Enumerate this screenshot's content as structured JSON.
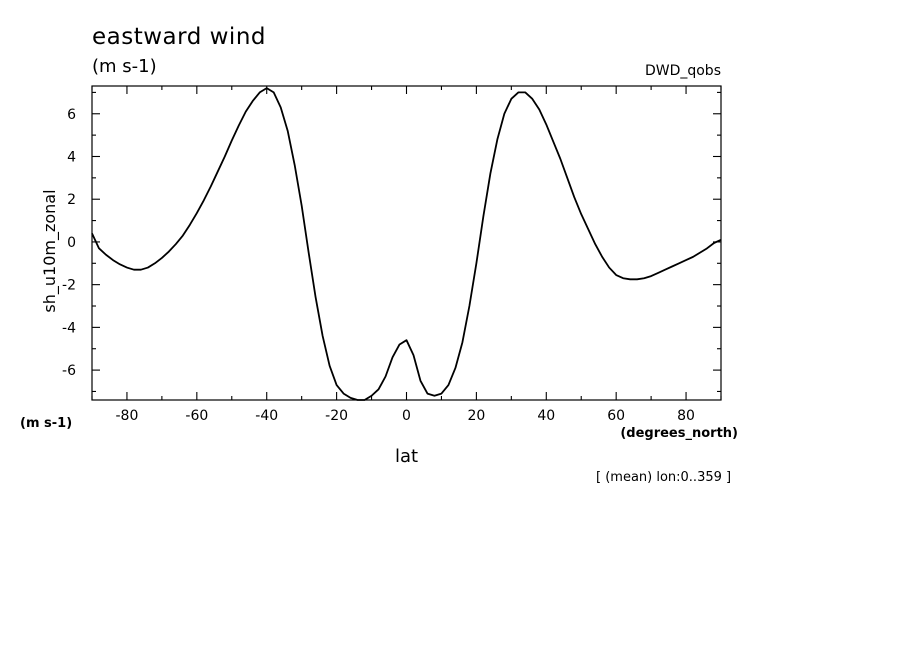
{
  "chart_data": {
    "type": "line",
    "title": "eastward wind",
    "units": "(m s-1)",
    "source_label": "DWD_qobs",
    "ylabel": "sh_u10m_zonal",
    "yunits": "(m s-1)",
    "xlabel": "lat",
    "xunits": "(degrees_north)",
    "footnote": "[ (mean) lon:0..359 ]",
    "xlim": [
      -90,
      90
    ],
    "ylim": [
      -7.4,
      7.3
    ],
    "xticks": [
      -80,
      -60,
      -40,
      -20,
      0,
      20,
      40,
      60,
      80
    ],
    "xtick_labels": [
      "-80",
      "-60",
      "-40",
      "-20",
      "0",
      "20",
      "40",
      "60",
      "80"
    ],
    "yticks": [
      -6,
      -4,
      -2,
      0,
      2,
      4,
      6
    ],
    "ytick_labels": [
      "-6",
      "-4",
      "-2",
      "0",
      "2",
      "4",
      "6"
    ],
    "grid": false,
    "series": [
      {
        "x": [
          -90,
          -88,
          -86,
          -84,
          -82,
          -80,
          -78,
          -76,
          -74,
          -72,
          -70,
          -68,
          -66,
          -64,
          -62,
          -60,
          -58,
          -56,
          -54,
          -52,
          -50,
          -48,
          -46,
          -44,
          -42,
          -40,
          -38,
          -36,
          -34,
          -32,
          -30,
          -28,
          -26,
          -24,
          -22,
          -20,
          -18,
          -16,
          -14,
          -12,
          -10,
          -8,
          -6,
          -4,
          -2,
          0,
          2,
          4,
          6,
          8,
          10,
          12,
          14,
          16,
          18,
          20,
          22,
          24,
          26,
          28,
          30,
          32,
          34,
          36,
          38,
          40,
          42,
          44,
          46,
          48,
          50,
          52,
          54,
          56,
          58,
          60,
          62,
          64,
          66,
          68,
          70,
          72,
          74,
          76,
          78,
          80,
          82,
          84,
          86,
          88,
          90
        ],
        "y": [
          0.4,
          -0.3,
          -0.6,
          -0.85,
          -1.05,
          -1.2,
          -1.3,
          -1.3,
          -1.2,
          -1.0,
          -0.75,
          -0.45,
          -0.1,
          0.3,
          0.8,
          1.35,
          1.95,
          2.6,
          3.3,
          4.0,
          4.75,
          5.45,
          6.1,
          6.6,
          7.0,
          7.2,
          7.0,
          6.3,
          5.2,
          3.6,
          1.7,
          -0.5,
          -2.6,
          -4.4,
          -5.8,
          -6.7,
          -7.1,
          -7.3,
          -7.4,
          -7.4,
          -7.2,
          -6.9,
          -6.3,
          -5.4,
          -4.8,
          -4.6,
          -5.3,
          -6.5,
          -7.1,
          -7.2,
          -7.1,
          -6.7,
          -5.9,
          -4.7,
          -3.0,
          -1.0,
          1.2,
          3.2,
          4.8,
          6.0,
          6.7,
          7.0,
          7.0,
          6.7,
          6.2,
          5.5,
          4.7,
          3.9,
          3.0,
          2.1,
          1.3,
          0.6,
          -0.1,
          -0.7,
          -1.2,
          -1.55,
          -1.7,
          -1.75,
          -1.75,
          -1.7,
          -1.6,
          -1.45,
          -1.3,
          -1.15,
          -1.0,
          -0.85,
          -0.7,
          -0.5,
          -0.3,
          -0.05,
          0.1
        ]
      }
    ]
  }
}
